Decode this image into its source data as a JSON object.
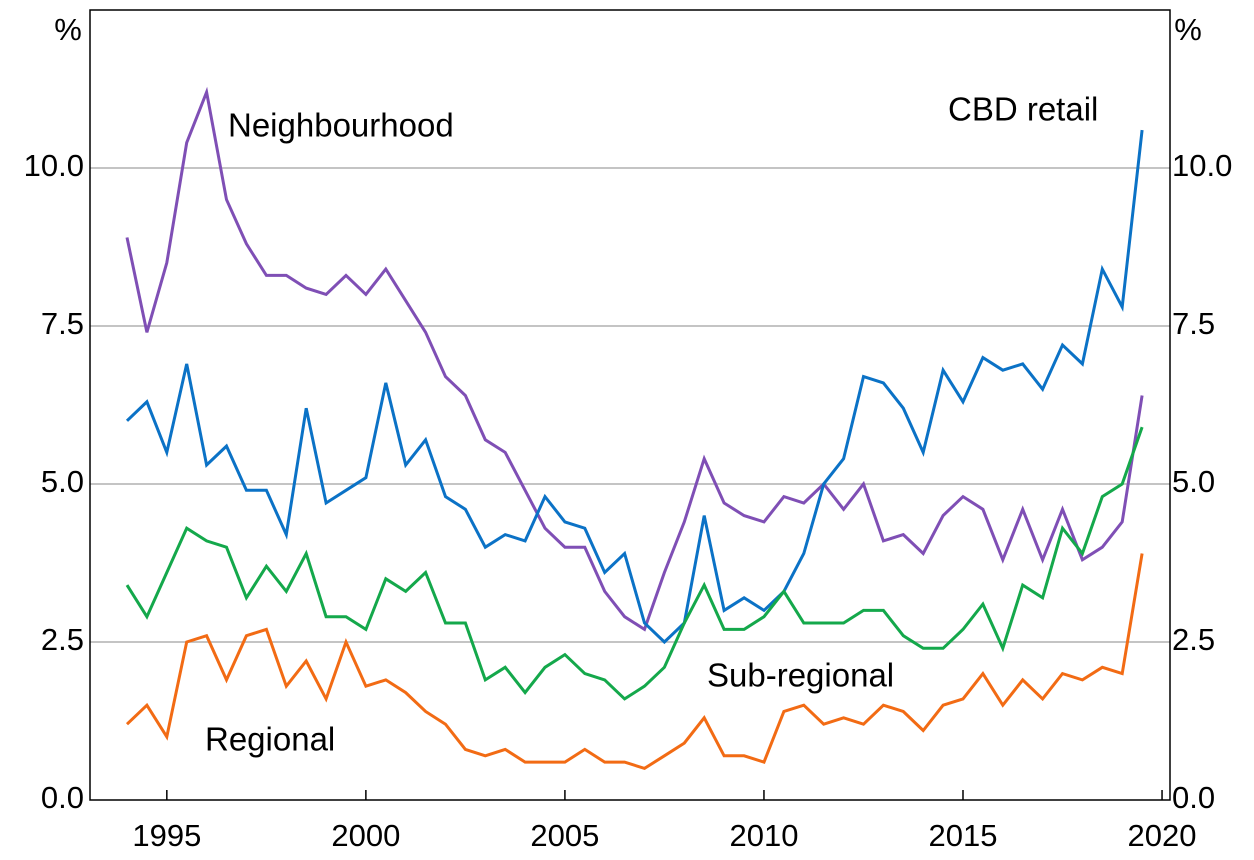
{
  "chart_data": {
    "type": "line",
    "y_unit": "%",
    "x": [
      1994.0,
      1994.5,
      1995.0,
      1995.5,
      1996.0,
      1996.5,
      1997.0,
      1997.5,
      1998.0,
      1998.5,
      1999.0,
      1999.5,
      2000.0,
      2000.5,
      2001.0,
      2001.5,
      2002.0,
      2002.5,
      2003.0,
      2003.5,
      2004.0,
      2004.5,
      2005.0,
      2005.5,
      2006.0,
      2006.5,
      2007.0,
      2007.5,
      2008.0,
      2008.5,
      2009.0,
      2009.5,
      2010.0,
      2010.5,
      2011.0,
      2011.5,
      2012.0,
      2012.5,
      2013.0,
      2013.5,
      2014.0,
      2014.5,
      2015.0,
      2015.5,
      2016.0,
      2016.5,
      2017.0,
      2017.5,
      2018.0,
      2018.5,
      2019.0,
      2019.5
    ],
    "series": [
      {
        "name": "Neighbourhood",
        "color": "#7f4fb5",
        "values": [
          8.9,
          7.4,
          8.5,
          10.4,
          11.2,
          9.5,
          8.8,
          8.3,
          8.3,
          8.1,
          8.0,
          8.3,
          8.0,
          8.4,
          7.9,
          7.4,
          6.7,
          6.4,
          5.7,
          5.5,
          4.9,
          4.3,
          4.0,
          4.0,
          3.3,
          2.9,
          2.7,
          3.6,
          4.4,
          5.4,
          4.7,
          4.5,
          4.4,
          4.8,
          4.7,
          5.0,
          4.6,
          5.0,
          4.1,
          4.2,
          3.9,
          4.5,
          4.8,
          4.6,
          3.8,
          4.6,
          3.8,
          4.6,
          3.8,
          4.0,
          4.4,
          6.4
        ]
      },
      {
        "name": "CBD retail",
        "color": "#0b72c6",
        "values": [
          6.0,
          6.3,
          5.5,
          6.9,
          5.3,
          5.6,
          4.9,
          4.9,
          4.2,
          6.2,
          4.7,
          4.9,
          5.1,
          6.6,
          5.3,
          5.7,
          4.8,
          4.6,
          4.0,
          4.2,
          4.1,
          4.8,
          4.4,
          4.3,
          3.6,
          3.9,
          2.8,
          2.5,
          2.8,
          4.5,
          3.0,
          3.2,
          3.0,
          3.3,
          3.9,
          5.0,
          5.4,
          6.7,
          6.6,
          6.2,
          5.5,
          6.8,
          6.3,
          7.0,
          6.8,
          6.9,
          6.5,
          7.2,
          6.9,
          8.4,
          7.8,
          10.6
        ]
      },
      {
        "name": "Sub-regional",
        "color": "#14a84b",
        "values": [
          3.4,
          2.9,
          3.6,
          4.3,
          4.1,
          4.0,
          3.2,
          3.7,
          3.3,
          3.9,
          2.9,
          2.9,
          2.7,
          3.5,
          3.3,
          3.6,
          2.8,
          2.8,
          1.9,
          2.1,
          1.7,
          2.1,
          2.3,
          2.0,
          1.9,
          1.6,
          1.8,
          2.1,
          2.8,
          3.4,
          2.7,
          2.7,
          2.9,
          3.3,
          2.8,
          2.8,
          2.8,
          3.0,
          3.0,
          2.6,
          2.4,
          2.4,
          2.7,
          3.1,
          2.4,
          3.4,
          3.2,
          4.3,
          3.9,
          4.8,
          5.0,
          5.9
        ]
      },
      {
        "name": "Regional",
        "color": "#f26b14",
        "values": [
          1.2,
          1.5,
          1.0,
          2.5,
          2.6,
          1.9,
          2.6,
          2.7,
          1.8,
          2.2,
          1.6,
          2.5,
          1.8,
          1.9,
          1.7,
          1.4,
          1.2,
          0.8,
          0.7,
          0.8,
          0.6,
          0.6,
          0.6,
          0.8,
          0.6,
          0.6,
          0.5,
          0.7,
          0.9,
          1.3,
          0.7,
          0.7,
          0.6,
          1.4,
          1.5,
          1.2,
          1.3,
          1.2,
          1.5,
          1.4,
          1.1,
          1.5,
          1.6,
          2.0,
          1.5,
          1.9,
          1.6,
          2.0,
          1.9,
          2.1,
          2.0,
          3.9
        ]
      }
    ],
    "xlim": [
      1993.07,
      2020.2
    ],
    "xticks": [
      1995,
      2000,
      2005,
      2010,
      2015,
      2020
    ],
    "ylim": [
      0,
      12.5
    ],
    "yticks": [
      {
        "value": 0,
        "label": "0.0"
      },
      2.5,
      {
        "value": 5,
        "label": "5.0"
      },
      7.5,
      {
        "value": 10,
        "label": "10.0"
      }
    ],
    "y2lim": [
      0,
      12.5
    ],
    "y2ticks": [
      {
        "value": 0,
        "label": "0.0"
      },
      2.5,
      {
        "value": 5,
        "label": "5.0"
      },
      7.5,
      {
        "value": 10,
        "label": "10.0"
      }
    ],
    "grid": true
  }
}
